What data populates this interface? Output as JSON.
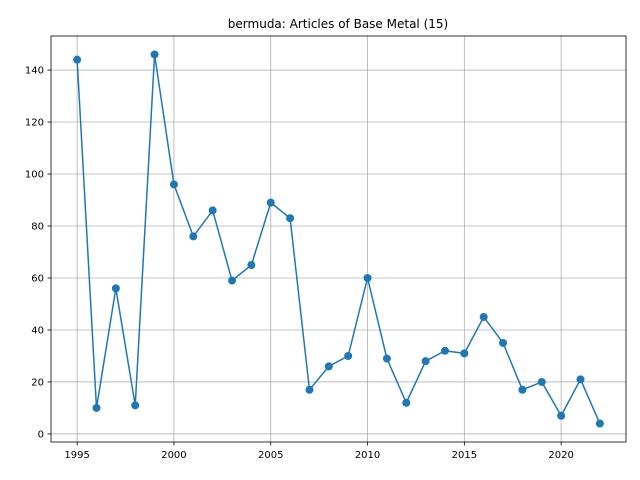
{
  "chart_data": {
    "type": "line",
    "title": "bermuda: Articles of Base Metal (15)",
    "xlabel": "",
    "ylabel": "",
    "x": [
      1995,
      1996,
      1997,
      1998,
      1999,
      2000,
      2001,
      2002,
      2003,
      2004,
      2005,
      2006,
      2007,
      2008,
      2009,
      2010,
      2011,
      2012,
      2013,
      2014,
      2015,
      2016,
      2017,
      2018,
      2019,
      2020,
      2021,
      2022
    ],
    "series": [
      {
        "values": [
          144,
          10,
          56,
          11,
          146,
          96,
          76,
          86,
          59,
          65,
          89,
          83,
          17,
          26,
          30,
          60,
          29,
          12,
          28,
          32,
          31,
          45,
          35,
          17,
          20,
          7,
          21,
          4
        ],
        "color": "#1f77b4",
        "marker": "circle"
      }
    ],
    "xlim": [
      1993.65,
      2023.35
    ],
    "ylim": [
      -3.1,
      153.1
    ],
    "x_ticks": [
      1995,
      2000,
      2005,
      2010,
      2015,
      2020
    ],
    "y_ticks": [
      0,
      20,
      40,
      60,
      80,
      100,
      120,
      140
    ],
    "grid": true
  }
}
